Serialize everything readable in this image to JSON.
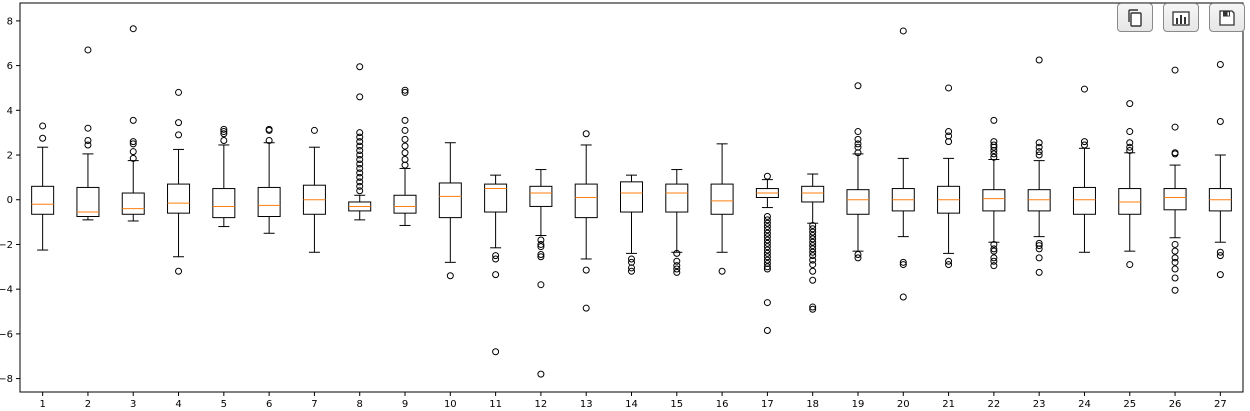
{
  "toolbar": {
    "buttons": [
      {
        "name": "copy-button",
        "icon": "copy-icon"
      },
      {
        "name": "chart-button",
        "icon": "bar-chart-icon"
      },
      {
        "name": "save-button",
        "icon": "save-icon"
      }
    ]
  },
  "chart_data": {
    "type": "boxplot",
    "title": "",
    "xlabel": "",
    "ylabel": "",
    "ylim": [
      -8.6,
      8.8
    ],
    "yticks": [
      -8,
      -6,
      -4,
      -2,
      0,
      2,
      4,
      6,
      8
    ],
    "grid": false,
    "colors": {
      "box": "#000000",
      "median": "#ff7f0e",
      "outlier": "#000000"
    },
    "categories": [
      "1",
      "2",
      "3",
      "4",
      "5",
      "6",
      "7",
      "8",
      "9",
      "10",
      "11",
      "12",
      "13",
      "14",
      "15",
      "16",
      "17",
      "18",
      "19",
      "20",
      "21",
      "22",
      "23",
      "24",
      "25",
      "26",
      "27"
    ],
    "boxes": [
      {
        "label": "1",
        "whislo": -2.25,
        "q1": -0.65,
        "med": -0.2,
        "q3": 0.6,
        "whishi": 2.35,
        "fliers": [
          2.75,
          3.3
        ]
      },
      {
        "label": "2",
        "whislo": -0.9,
        "q1": -0.75,
        "med": -0.55,
        "q3": 0.55,
        "whishi": 2.05,
        "fliers": [
          2.45,
          2.65,
          3.2,
          6.7
        ]
      },
      {
        "label": "3",
        "whislo": -0.95,
        "q1": -0.65,
        "med": -0.4,
        "q3": 0.3,
        "whishi": 1.75,
        "fliers": [
          1.85,
          2.15,
          2.5,
          2.6,
          3.55,
          7.65
        ]
      },
      {
        "label": "4",
        "whislo": -2.55,
        "q1": -0.6,
        "med": -0.15,
        "q3": 0.7,
        "whishi": 2.25,
        "fliers": [
          2.9,
          3.45,
          4.8,
          -3.2
        ]
      },
      {
        "label": "5",
        "whislo": -1.2,
        "q1": -0.8,
        "med": -0.3,
        "q3": 0.5,
        "whishi": 2.45,
        "fliers": [
          2.65,
          2.95,
          3.05,
          3.15
        ]
      },
      {
        "label": "6",
        "whislo": -1.5,
        "q1": -0.75,
        "med": -0.25,
        "q3": 0.55,
        "whishi": 2.55,
        "fliers": [
          2.65,
          3.1,
          3.15
        ]
      },
      {
        "label": "7",
        "whislo": -2.35,
        "q1": -0.65,
        "med": 0.0,
        "q3": 0.65,
        "whishi": 2.35,
        "fliers": [
          3.1
        ]
      },
      {
        "label": "8",
        "whislo": -0.9,
        "q1": -0.5,
        "med": -0.3,
        "q3": -0.1,
        "whishi": 0.2,
        "fliers": [
          0.4,
          0.6,
          0.8,
          1.0,
          1.2,
          1.4,
          1.6,
          1.8,
          2.0,
          2.2,
          2.4,
          2.6,
          2.8,
          3.0,
          4.6,
          5.95
        ]
      },
      {
        "label": "9",
        "whislo": -1.15,
        "q1": -0.6,
        "med": -0.3,
        "q3": 0.2,
        "whishi": 1.4,
        "fliers": [
          1.55,
          1.8,
          2.1,
          2.4,
          2.7,
          3.1,
          3.55,
          4.8,
          4.9
        ]
      },
      {
        "label": "10",
        "whislo": -2.8,
        "q1": -0.8,
        "med": 0.15,
        "q3": 0.75,
        "whishi": 2.55,
        "fliers": [
          -3.4
        ]
      },
      {
        "label": "11",
        "whislo": -2.15,
        "q1": -0.55,
        "med": 0.5,
        "q3": 0.7,
        "whishi": 1.1,
        "fliers": [
          -2.5,
          -2.65,
          -3.35,
          -6.8
        ]
      },
      {
        "label": "12",
        "whislo": -1.6,
        "q1": -0.3,
        "med": 0.3,
        "q3": 0.6,
        "whishi": 1.35,
        "fliers": [
          -1.8,
          -2.0,
          -2.1,
          -2.45,
          -2.55,
          -3.8,
          -7.8
        ]
      },
      {
        "label": "13",
        "whislo": -2.65,
        "q1": -0.8,
        "med": 0.1,
        "q3": 0.7,
        "whishi": 2.45,
        "fliers": [
          2.95,
          -3.15,
          -4.85
        ]
      },
      {
        "label": "14",
        "whislo": -2.4,
        "q1": -0.55,
        "med": 0.3,
        "q3": 0.8,
        "whishi": 1.1,
        "fliers": [
          -2.65,
          -2.8,
          -3.05,
          -3.2
        ]
      },
      {
        "label": "15",
        "whislo": -2.35,
        "q1": -0.55,
        "med": 0.3,
        "q3": 0.7,
        "whishi": 1.35,
        "fliers": [
          -2.4,
          -2.75,
          -2.95,
          -3.1,
          -3.25
        ]
      },
      {
        "label": "16",
        "whislo": -2.35,
        "q1": -0.65,
        "med": -0.05,
        "q3": 0.7,
        "whishi": 2.5,
        "fliers": [
          -3.2
        ]
      },
      {
        "label": "17",
        "whislo": -0.35,
        "q1": 0.1,
        "med": 0.3,
        "q3": 0.5,
        "whishi": 0.9,
        "fliers": [
          1.05,
          -0.75,
          -0.9,
          -1.05,
          -1.2,
          -1.35,
          -1.5,
          -1.65,
          -1.8,
          -1.95,
          -2.1,
          -2.25,
          -2.4,
          -2.55,
          -2.7,
          -2.85,
          -3.0,
          -3.1,
          -4.6,
          -5.85
        ]
      },
      {
        "label": "18",
        "whislo": -1.05,
        "q1": -0.1,
        "med": 0.3,
        "q3": 0.6,
        "whishi": 1.15,
        "fliers": [
          -1.15,
          -1.3,
          -1.45,
          -1.6,
          -1.75,
          -1.9,
          -2.05,
          -2.2,
          -2.35,
          -2.5,
          -2.7,
          -2.9,
          -3.2,
          -3.6,
          -4.8,
          -4.9
        ]
      },
      {
        "label": "19",
        "whislo": -2.3,
        "q1": -0.65,
        "med": 0.0,
        "q3": 0.45,
        "whishi": 2.05,
        "fliers": [
          2.1,
          2.35,
          2.5,
          2.7,
          3.05,
          5.1,
          -2.45,
          -2.6
        ]
      },
      {
        "label": "20",
        "whislo": -1.65,
        "q1": -0.5,
        "med": 0.0,
        "q3": 0.5,
        "whishi": 1.85,
        "fliers": [
          -2.8,
          -2.9,
          -4.35,
          7.55
        ]
      },
      {
        "label": "21",
        "whislo": -2.4,
        "q1": -0.6,
        "med": 0.0,
        "q3": 0.6,
        "whishi": 1.85,
        "fliers": [
          2.6,
          2.85,
          3.05,
          5.0,
          -2.75,
          -2.9
        ]
      },
      {
        "label": "22",
        "whislo": -1.9,
        "q1": -0.5,
        "med": 0.05,
        "q3": 0.45,
        "whishi": 1.8,
        "fliers": [
          1.9,
          2.05,
          2.2,
          2.35,
          2.45,
          2.6,
          3.55,
          -2.0,
          -2.2,
          -2.3,
          -2.6,
          -2.75,
          -2.95
        ]
      },
      {
        "label": "23",
        "whislo": -1.65,
        "q1": -0.5,
        "med": 0.0,
        "q3": 0.45,
        "whishi": 1.75,
        "fliers": [
          2.0,
          2.15,
          2.35,
          2.55,
          6.25,
          -1.95,
          -2.05,
          -2.2,
          -2.6,
          -3.25
        ]
      },
      {
        "label": "24",
        "whislo": -2.35,
        "q1": -0.65,
        "med": 0.0,
        "q3": 0.55,
        "whishi": 2.3,
        "fliers": [
          2.45,
          2.6,
          4.95
        ]
      },
      {
        "label": "25",
        "whislo": -2.3,
        "q1": -0.65,
        "med": -0.1,
        "q3": 0.5,
        "whishi": 2.1,
        "fliers": [
          2.2,
          2.35,
          2.55,
          3.05,
          4.3,
          -2.9
        ]
      },
      {
        "label": "26",
        "whislo": -1.7,
        "q1": -0.45,
        "med": 0.1,
        "q3": 0.5,
        "whishi": 1.55,
        "fliers": [
          2.05,
          2.1,
          3.25,
          5.8,
          -2.0,
          -2.3,
          -2.6,
          -2.8,
          -3.1,
          -3.5,
          -4.05
        ]
      },
      {
        "label": "27",
        "whislo": -1.9,
        "q1": -0.5,
        "med": 0.0,
        "q3": 0.5,
        "whishi": 2.0,
        "fliers": [
          3.5,
          6.05,
          -2.35,
          -2.5,
          -3.35
        ]
      }
    ]
  }
}
